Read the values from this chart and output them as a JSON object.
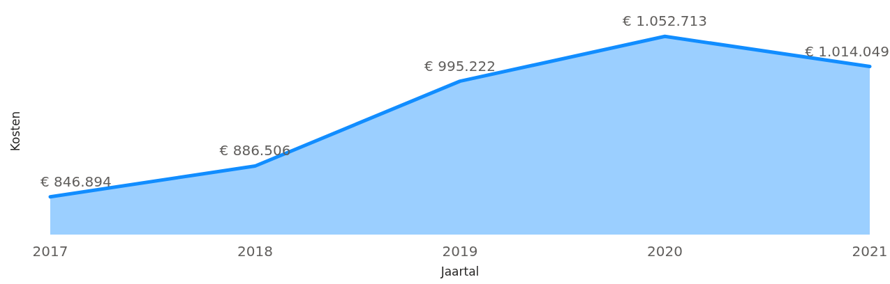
{
  "chart_data": {
    "type": "area",
    "xlabel": "Jaartal",
    "ylabel": "Kosten",
    "categories": [
      "2017",
      "2018",
      "2019",
      "2020",
      "2021"
    ],
    "series": [
      {
        "color": "#118dff",
        "values": [
          846894,
          886506,
          995222,
          1052713,
          1014049
        ],
        "value_labels": [
          "€ 846.894",
          "€ 886.506",
          "€ 995.222",
          "€ 1.052.713",
          "€ 1.014.049"
        ]
      }
    ],
    "tick_labels": "x"
  }
}
